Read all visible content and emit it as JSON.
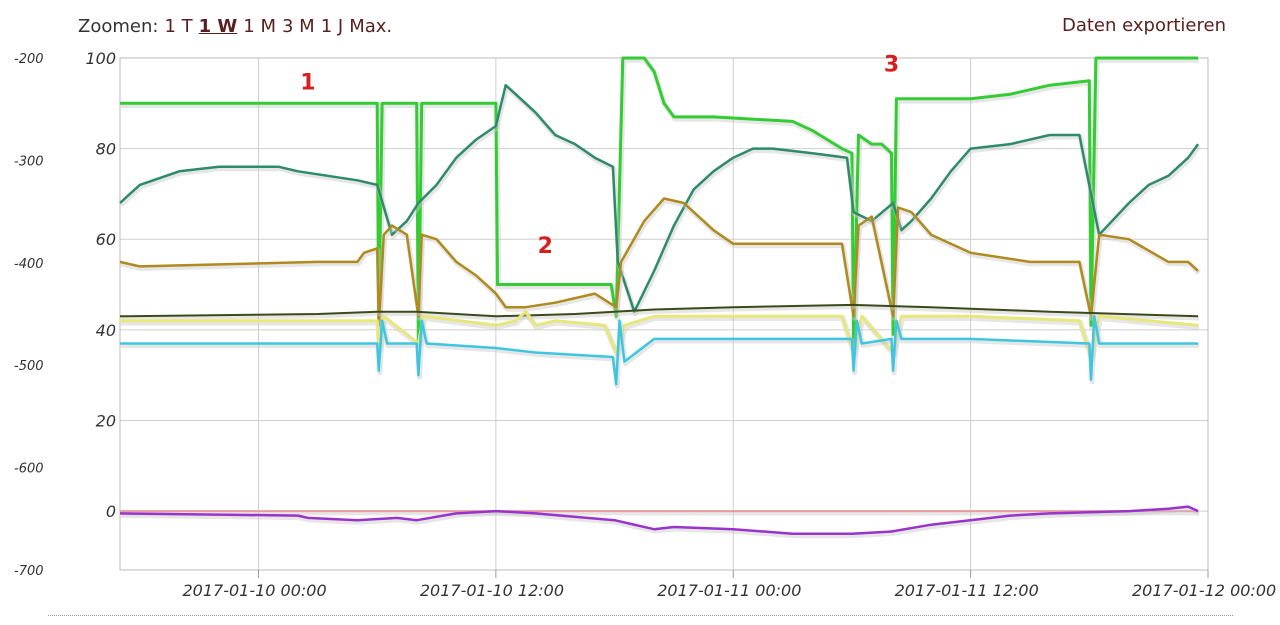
{
  "toolbar": {
    "zoom_label": "Zoomen:",
    "zoom_options": [
      "1 T",
      "1 W",
      "1 M",
      "3 M",
      "1 J",
      "Max."
    ],
    "active_zoom": "1 W",
    "export_label": "Daten exportieren"
  },
  "chart_data": {
    "type": "line",
    "title": "",
    "xlabel": "",
    "x_range": [
      "2017-01-09 17:00",
      "2017-01-12 00:00"
    ],
    "x_ticks": [
      "2017-01-10 00:00",
      "2017-01-10 12:00",
      "2017-01-11 00:00",
      "2017-01-11 12:00",
      "2017-01-12 00:00"
    ],
    "y_left": {
      "range": [
        -700,
        -200
      ],
      "ticks": [
        -200,
        -300,
        -400,
        -500,
        -600,
        -700
      ]
    },
    "y_right": {
      "range": [
        -13,
        100
      ],
      "ticks": [
        100,
        80,
        60,
        40,
        20,
        0
      ]
    },
    "grid": true,
    "legend": "none",
    "annotations": [
      {
        "text": "1",
        "x": "2017-01-10 02:30",
        "y": 93
      },
      {
        "text": "2",
        "x": "2017-01-10 14:30",
        "y": 57
      },
      {
        "text": "3",
        "x": "2017-01-11 08:00",
        "y": 97
      }
    ],
    "series": [
      {
        "color": "#33cc33",
        "width": 3,
        "points": [
          [
            "2017-01-09 17:00",
            90
          ],
          [
            "2017-01-10 06:00",
            90
          ],
          [
            "2017-01-10 06:05",
            41
          ],
          [
            "2017-01-10 06:15",
            90
          ],
          [
            "2017-01-10 08:00",
            90
          ],
          [
            "2017-01-10 08:05",
            37
          ],
          [
            "2017-01-10 08:15",
            90
          ],
          [
            "2017-01-10 12:00",
            90
          ],
          [
            "2017-01-10 12:05",
            50
          ],
          [
            "2017-01-10 17:50",
            50
          ],
          [
            "2017-01-10 18:05",
            43
          ],
          [
            "2017-01-10 18:25",
            100
          ],
          [
            "2017-01-10 19:30",
            100
          ],
          [
            "2017-01-10 20:00",
            97
          ],
          [
            "2017-01-10 20:30",
            90
          ],
          [
            "2017-01-10 21:00",
            87
          ],
          [
            "2017-01-10 23:00",
            87
          ],
          [
            "2017-01-11 03:00",
            86
          ],
          [
            "2017-01-11 04:00",
            84
          ],
          [
            "2017-01-11 05:30",
            80
          ],
          [
            "2017-01-11 06:00",
            79
          ],
          [
            "2017-01-11 06:05",
            37
          ],
          [
            "2017-01-11 06:20",
            83
          ],
          [
            "2017-01-11 07:00",
            81
          ],
          [
            "2017-01-11 07:30",
            81
          ],
          [
            "2017-01-11 08:00",
            79
          ],
          [
            "2017-01-11 08:05",
            39
          ],
          [
            "2017-01-11 08:15",
            91
          ],
          [
            "2017-01-11 09:00",
            91
          ],
          [
            "2017-01-11 12:00",
            91
          ],
          [
            "2017-01-11 14:00",
            92
          ],
          [
            "2017-01-11 16:00",
            94
          ],
          [
            "2017-01-11 18:00",
            95
          ],
          [
            "2017-01-11 18:05",
            41
          ],
          [
            "2017-01-11 18:20",
            100
          ],
          [
            "2017-01-11 23:00",
            100
          ],
          [
            "2017-01-11 23:30",
            100
          ]
        ]
      },
      {
        "color": "#2e8b6a",
        "width": 2.5,
        "points": [
          [
            "2017-01-09 17:00",
            68
          ],
          [
            "2017-01-09 18:00",
            72
          ],
          [
            "2017-01-09 20:00",
            75
          ],
          [
            "2017-01-09 22:00",
            76
          ],
          [
            "2017-01-10 01:00",
            76
          ],
          [
            "2017-01-10 02:00",
            75
          ],
          [
            "2017-01-10 05:00",
            73
          ],
          [
            "2017-01-10 06:00",
            72
          ],
          [
            "2017-01-10 06:45",
            61
          ],
          [
            "2017-01-10 07:30",
            64
          ],
          [
            "2017-01-10 08:05",
            68
          ],
          [
            "2017-01-10 09:00",
            72
          ],
          [
            "2017-01-10 10:00",
            78
          ],
          [
            "2017-01-10 11:00",
            82
          ],
          [
            "2017-01-10 12:00",
            85
          ],
          [
            "2017-01-10 12:30",
            94
          ],
          [
            "2017-01-10 13:00",
            92
          ],
          [
            "2017-01-10 14:00",
            88
          ],
          [
            "2017-01-10 15:00",
            83
          ],
          [
            "2017-01-10 16:00",
            81
          ],
          [
            "2017-01-10 17:00",
            78
          ],
          [
            "2017-01-10 17:55",
            76
          ],
          [
            "2017-01-10 18:10",
            55
          ],
          [
            "2017-01-10 19:00",
            44
          ],
          [
            "2017-01-10 20:00",
            53
          ],
          [
            "2017-01-10 21:00",
            63
          ],
          [
            "2017-01-10 22:00",
            71
          ],
          [
            "2017-01-10 23:00",
            75
          ],
          [
            "2017-01-11 00:00",
            78
          ],
          [
            "2017-01-11 01:00",
            80
          ],
          [
            "2017-01-11 02:00",
            80
          ],
          [
            "2017-01-11 04:00",
            79
          ],
          [
            "2017-01-11 05:45",
            78
          ],
          [
            "2017-01-11 06:05",
            66
          ],
          [
            "2017-01-11 07:00",
            64
          ],
          [
            "2017-01-11 08:05",
            68
          ],
          [
            "2017-01-11 08:30",
            62
          ],
          [
            "2017-01-11 09:00",
            64
          ],
          [
            "2017-01-11 10:00",
            69
          ],
          [
            "2017-01-11 11:00",
            75
          ],
          [
            "2017-01-11 12:00",
            80
          ],
          [
            "2017-01-11 14:00",
            81
          ],
          [
            "2017-01-11 16:00",
            83
          ],
          [
            "2017-01-11 17:30",
            83
          ],
          [
            "2017-01-11 18:05",
            70
          ],
          [
            "2017-01-11 18:30",
            61
          ],
          [
            "2017-01-11 20:00",
            68
          ],
          [
            "2017-01-11 21:00",
            72
          ],
          [
            "2017-01-11 22:00",
            74
          ],
          [
            "2017-01-11 23:00",
            78
          ],
          [
            "2017-01-11 23:30",
            81
          ]
        ]
      },
      {
        "color": "#b08a1c",
        "width": 2.5,
        "points": [
          [
            "2017-01-09 17:00",
            55
          ],
          [
            "2017-01-09 18:00",
            54
          ],
          [
            "2017-01-10 03:00",
            55
          ],
          [
            "2017-01-10 05:00",
            55
          ],
          [
            "2017-01-10 05:20",
            57
          ],
          [
            "2017-01-10 06:00",
            58
          ],
          [
            "2017-01-10 06:05",
            41
          ],
          [
            "2017-01-10 06:20",
            61
          ],
          [
            "2017-01-10 06:45",
            63
          ],
          [
            "2017-01-10 07:30",
            61
          ],
          [
            "2017-01-10 08:05",
            43
          ],
          [
            "2017-01-10 08:15",
            61
          ],
          [
            "2017-01-10 09:00",
            60
          ],
          [
            "2017-01-10 10:00",
            55
          ],
          [
            "2017-01-10 11:00",
            52
          ],
          [
            "2017-01-10 12:00",
            48
          ],
          [
            "2017-01-10 12:30",
            45
          ],
          [
            "2017-01-10 13:30",
            45
          ],
          [
            "2017-01-10 15:00",
            46
          ],
          [
            "2017-01-10 17:00",
            48
          ],
          [
            "2017-01-10 18:05",
            45
          ],
          [
            "2017-01-10 18:20",
            55
          ],
          [
            "2017-01-10 19:30",
            64
          ],
          [
            "2017-01-10 20:30",
            69
          ],
          [
            "2017-01-10 21:30",
            68
          ],
          [
            "2017-01-10 23:00",
            62
          ],
          [
            "2017-01-11 00:00",
            59
          ],
          [
            "2017-01-11 02:00",
            59
          ],
          [
            "2017-01-11 04:00",
            59
          ],
          [
            "2017-01-11 05:30",
            59
          ],
          [
            "2017-01-11 06:05",
            43
          ],
          [
            "2017-01-11 06:20",
            63
          ],
          [
            "2017-01-11 07:00",
            65
          ],
          [
            "2017-01-11 08:05",
            43
          ],
          [
            "2017-01-11 08:20",
            67
          ],
          [
            "2017-01-11 09:00",
            66
          ],
          [
            "2017-01-11 10:00",
            61
          ],
          [
            "2017-01-11 12:00",
            57
          ],
          [
            "2017-01-11 15:00",
            55
          ],
          [
            "2017-01-11 17:30",
            55
          ],
          [
            "2017-01-11 18:05",
            43
          ],
          [
            "2017-01-11 18:30",
            61
          ],
          [
            "2017-01-11 20:00",
            60
          ],
          [
            "2017-01-11 22:00",
            55
          ],
          [
            "2017-01-11 23:00",
            55
          ],
          [
            "2017-01-11 23:30",
            53
          ]
        ]
      },
      {
        "color": "#3b4a1a",
        "width": 2,
        "points": [
          [
            "2017-01-09 17:00",
            43
          ],
          [
            "2017-01-10 03:00",
            43.5
          ],
          [
            "2017-01-10 06:00",
            44
          ],
          [
            "2017-01-10 08:00",
            44
          ],
          [
            "2017-01-10 12:00",
            43
          ],
          [
            "2017-01-10 16:00",
            43.5
          ],
          [
            "2017-01-10 20:00",
            44.5
          ],
          [
            "2017-01-11 00:00",
            45
          ],
          [
            "2017-01-11 06:00",
            45.5
          ],
          [
            "2017-01-11 10:00",
            45
          ],
          [
            "2017-01-11 16:00",
            44
          ],
          [
            "2017-01-11 23:30",
            43
          ]
        ]
      },
      {
        "color": "#e8e87a",
        "width": 3,
        "points": [
          [
            "2017-01-09 17:00",
            42
          ],
          [
            "2017-01-10 05:00",
            42
          ],
          [
            "2017-01-10 06:00",
            42
          ],
          [
            "2017-01-10 06:05",
            36
          ],
          [
            "2017-01-10 06:20",
            43
          ],
          [
            "2017-01-10 08:05",
            37
          ],
          [
            "2017-01-10 08:20",
            43
          ],
          [
            "2017-01-10 12:00",
            41
          ],
          [
            "2017-01-10 13:00",
            42
          ],
          [
            "2017-01-10 13:30",
            44
          ],
          [
            "2017-01-10 14:00",
            41
          ],
          [
            "2017-01-10 15:00",
            42
          ],
          [
            "2017-01-10 17:30",
            41
          ],
          [
            "2017-01-10 18:05",
            35
          ],
          [
            "2017-01-10 18:30",
            41
          ],
          [
            "2017-01-10 20:00",
            43
          ],
          [
            "2017-01-11 00:00",
            43
          ],
          [
            "2017-01-11 05:30",
            43
          ],
          [
            "2017-01-11 06:05",
            35
          ],
          [
            "2017-01-11 06:30",
            43
          ],
          [
            "2017-01-11 08:05",
            35
          ],
          [
            "2017-01-11 08:30",
            43
          ],
          [
            "2017-01-11 12:00",
            43
          ],
          [
            "2017-01-11 17:30",
            42
          ],
          [
            "2017-01-11 18:05",
            34
          ],
          [
            "2017-01-11 18:30",
            43
          ],
          [
            "2017-01-11 23:30",
            41
          ]
        ]
      },
      {
        "color": "#3ec6e0",
        "width": 2.5,
        "points": [
          [
            "2017-01-09 17:00",
            37
          ],
          [
            "2017-01-10 06:00",
            37
          ],
          [
            "2017-01-10 06:05",
            31
          ],
          [
            "2017-01-10 06:15",
            42
          ],
          [
            "2017-01-10 06:30",
            37
          ],
          [
            "2017-01-10 08:00",
            37
          ],
          [
            "2017-01-10 08:05",
            30
          ],
          [
            "2017-01-10 08:15",
            42
          ],
          [
            "2017-01-10 08:30",
            37
          ],
          [
            "2017-01-10 12:00",
            36
          ],
          [
            "2017-01-10 14:00",
            35
          ],
          [
            "2017-01-10 17:55",
            34
          ],
          [
            "2017-01-10 18:05",
            28
          ],
          [
            "2017-01-10 18:15",
            42
          ],
          [
            "2017-01-10 18:30",
            33
          ],
          [
            "2017-01-10 20:00",
            38
          ],
          [
            "2017-01-11 00:00",
            38
          ],
          [
            "2017-01-11 06:00",
            38
          ],
          [
            "2017-01-11 06:05",
            31
          ],
          [
            "2017-01-11 06:15",
            42
          ],
          [
            "2017-01-11 06:30",
            37
          ],
          [
            "2017-01-11 08:00",
            38
          ],
          [
            "2017-01-11 08:05",
            31
          ],
          [
            "2017-01-11 08:15",
            42
          ],
          [
            "2017-01-11 08:30",
            38
          ],
          [
            "2017-01-11 12:00",
            38
          ],
          [
            "2017-01-11 18:00",
            37
          ],
          [
            "2017-01-11 18:05",
            29
          ],
          [
            "2017-01-11 18:15",
            43
          ],
          [
            "2017-01-11 18:30",
            37
          ],
          [
            "2017-01-11 23:30",
            37
          ]
        ]
      },
      {
        "color": "#e89aa0",
        "width": 2,
        "points": [
          [
            "2017-01-09 17:00",
            0
          ],
          [
            "2017-01-11 23:30",
            0
          ]
        ]
      },
      {
        "color": "#9933cc",
        "width": 2.5,
        "points": [
          [
            "2017-01-09 17:00",
            -0.5
          ],
          [
            "2017-01-10 02:00",
            -1
          ],
          [
            "2017-01-10 02:30",
            -1.5
          ],
          [
            "2017-01-10 05:00",
            -2
          ],
          [
            "2017-01-10 07:00",
            -1.5
          ],
          [
            "2017-01-10 08:00",
            -2
          ],
          [
            "2017-01-10 10:00",
            -0.5
          ],
          [
            "2017-01-10 12:00",
            0
          ],
          [
            "2017-01-10 14:00",
            -0.5
          ],
          [
            "2017-01-10 18:00",
            -2
          ],
          [
            "2017-01-10 20:00",
            -4
          ],
          [
            "2017-01-10 21:00",
            -3.5
          ],
          [
            "2017-01-11 00:00",
            -4
          ],
          [
            "2017-01-11 03:00",
            -5
          ],
          [
            "2017-01-11 06:00",
            -5
          ],
          [
            "2017-01-11 08:00",
            -4.5
          ],
          [
            "2017-01-11 10:00",
            -3
          ],
          [
            "2017-01-11 14:00",
            -1
          ],
          [
            "2017-01-11 16:00",
            -0.5
          ],
          [
            "2017-01-11 20:00",
            0
          ],
          [
            "2017-01-11 22:00",
            0.5
          ],
          [
            "2017-01-11 23:00",
            1
          ],
          [
            "2017-01-11 23:30",
            0
          ]
        ]
      }
    ]
  }
}
